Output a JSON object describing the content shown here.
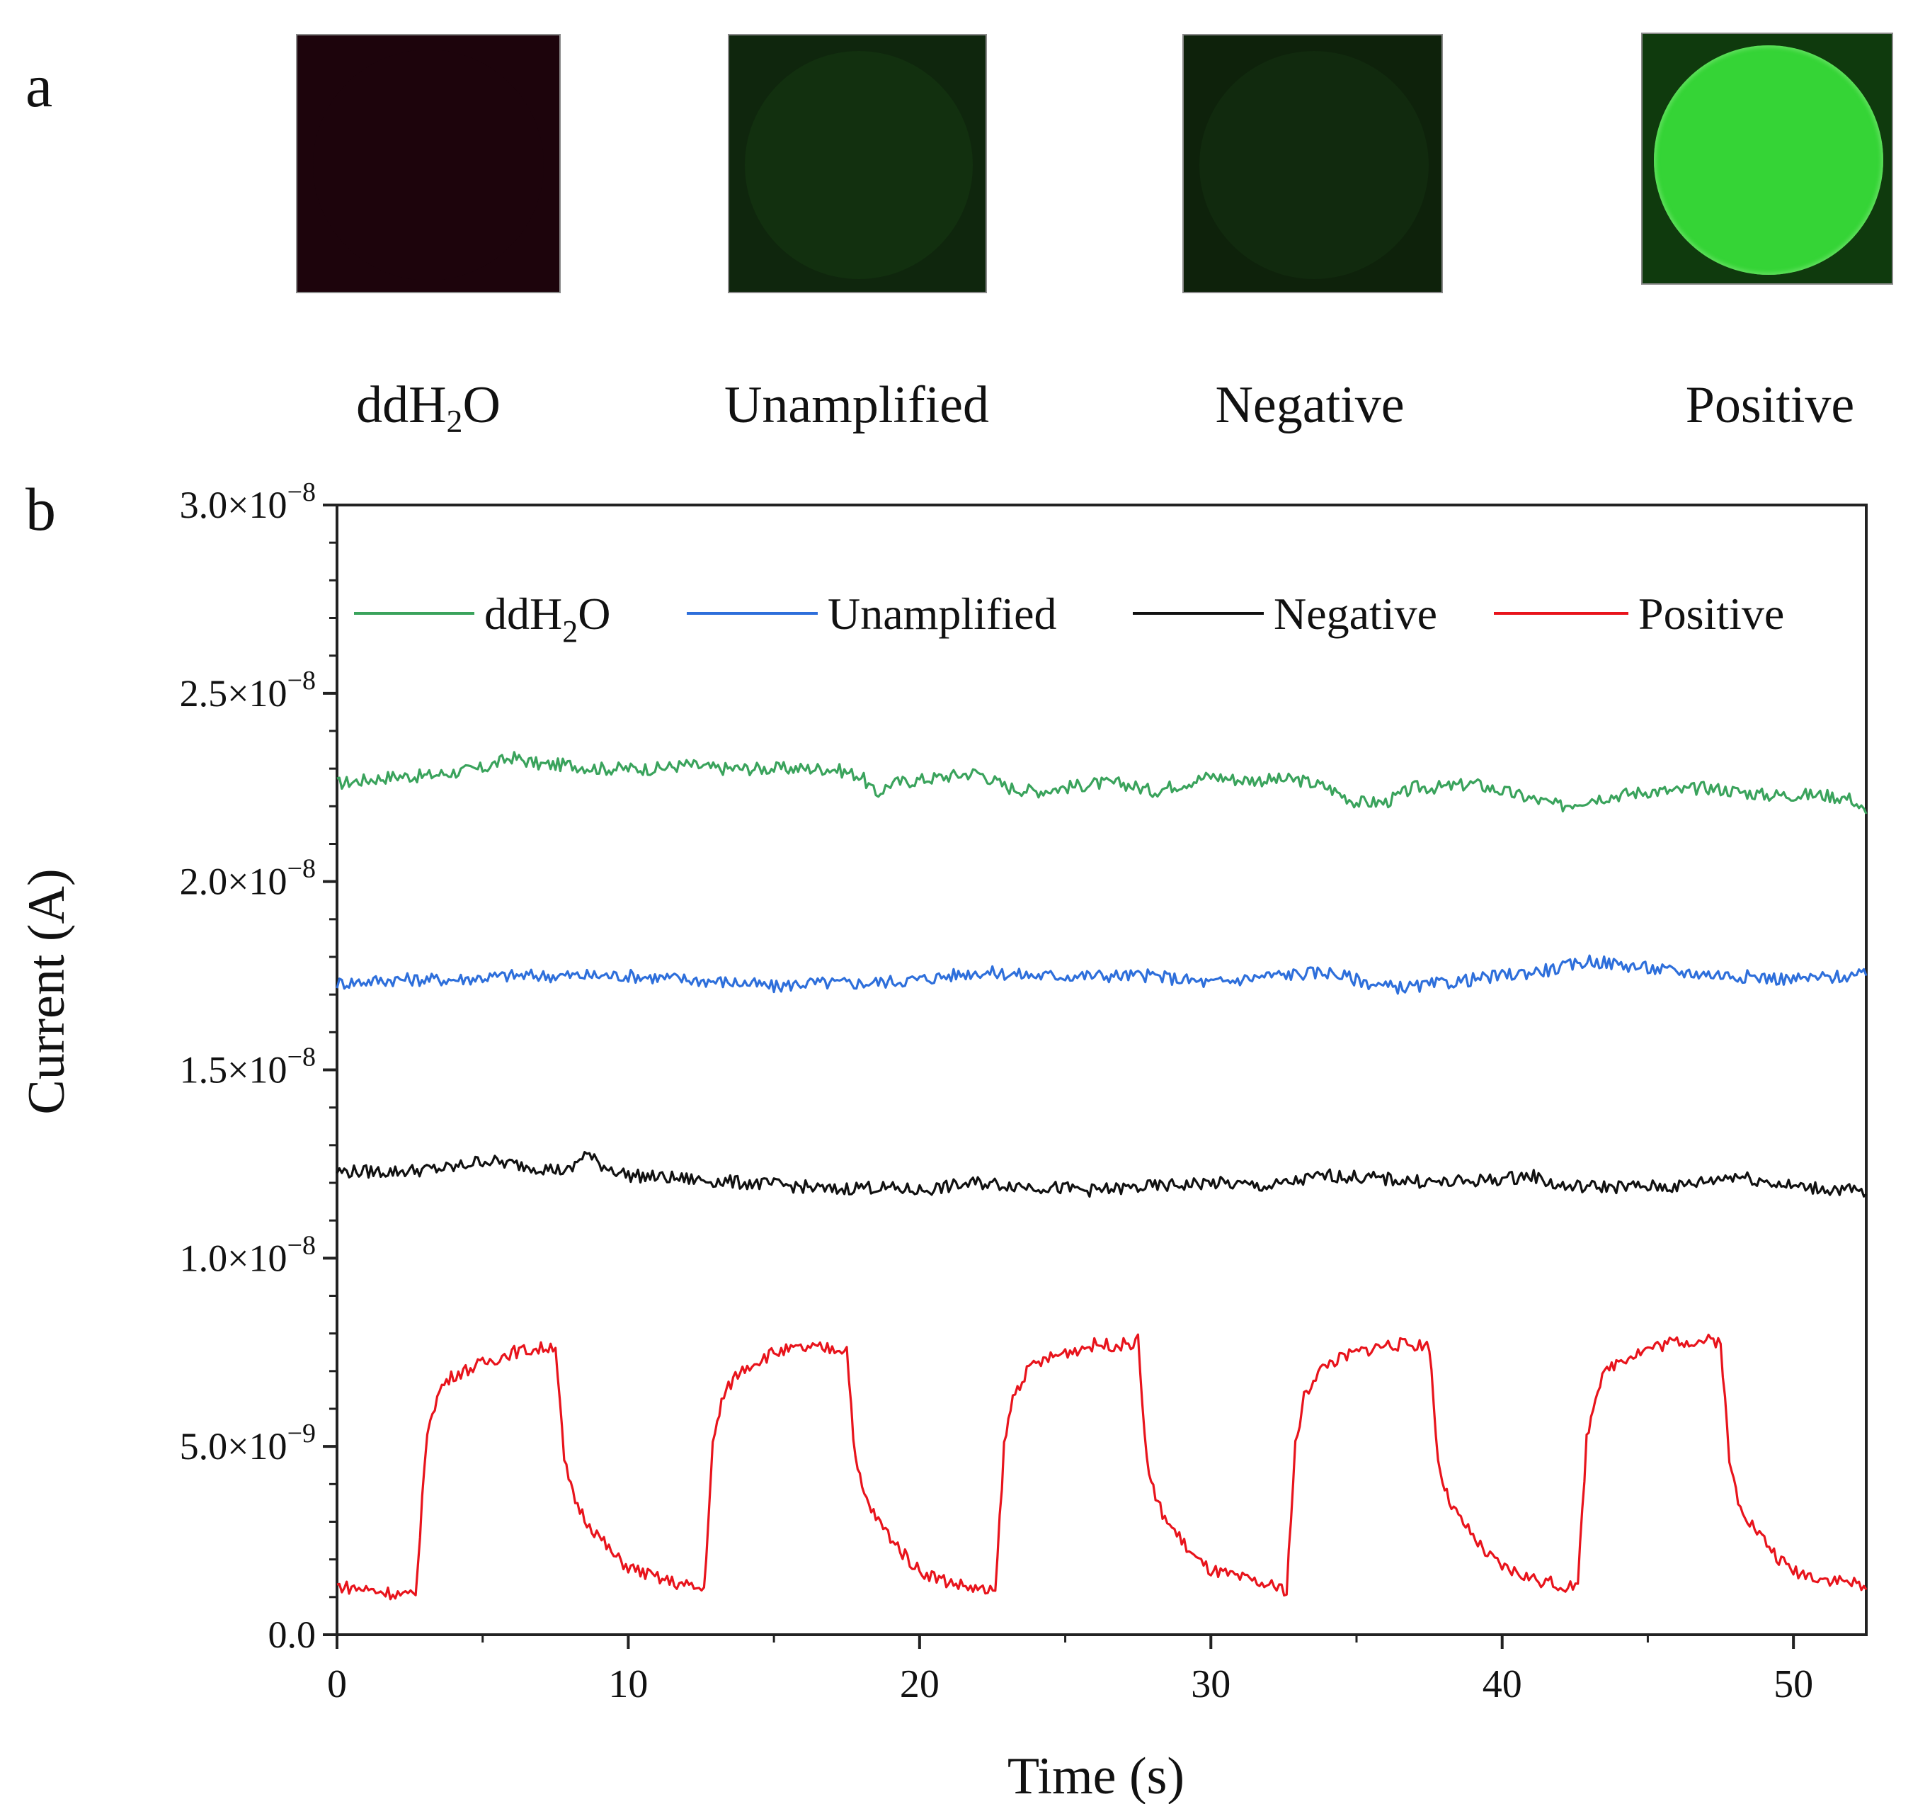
{
  "panel_a": {
    "letter": "a",
    "samples": [
      {
        "label_main": "ddH",
        "label_sub": "2",
        "label_tail": "O",
        "base_color": "#1d040c",
        "disc_color": "#1d040c"
      },
      {
        "label_main": "Unamplified",
        "label_sub": "",
        "label_tail": "",
        "base_color": "#0f260d",
        "disc_color": "#12300f"
      },
      {
        "label_main": "Negative",
        "label_sub": "",
        "label_tail": "",
        "base_color": "#0e220b",
        "disc_color": "#112a0e"
      },
      {
        "label_main": "Positive",
        "label_sub": "",
        "label_tail": "",
        "base_color": "#0f3a0d",
        "disc_color": "#35d436"
      }
    ]
  },
  "panel_b": {
    "letter": "b"
  },
  "chart_data": {
    "type": "line",
    "xlabel": "Time (s)",
    "ylabel": "Current (A)",
    "xlim": [
      0,
      52.5
    ],
    "ylim": [
      0,
      3e-08
    ],
    "x_ticks": [
      0,
      10,
      20,
      30,
      40,
      50
    ],
    "x_tick_labels": [
      "0",
      "10",
      "20",
      "30",
      "40",
      "50"
    ],
    "y_ticks": [
      0,
      5e-09,
      1e-08,
      1.5e-08,
      2e-08,
      2.5e-08,
      3e-08
    ],
    "y_tick_labels": [
      {
        "mantissa": "0.0",
        "exponent": ""
      },
      {
        "mantissa": "5.0×10",
        "exponent": "−9"
      },
      {
        "mantissa": "1.0×10",
        "exponent": "−8"
      },
      {
        "mantissa": "1.5×10",
        "exponent": "−8"
      },
      {
        "mantissa": "2.0×10",
        "exponent": "−8"
      },
      {
        "mantissa": "2.5×10",
        "exponent": "−8"
      },
      {
        "mantissa": "3.0×10",
        "exponent": "−8"
      }
    ],
    "legend_position": "top",
    "series": [
      {
        "name": "ddH",
        "name_sub": "2",
        "name_tail": "O",
        "color": "#3aa35c",
        "x": [
          0,
          1,
          2,
          3,
          4,
          5,
          6,
          7,
          8,
          9,
          10,
          11,
          12,
          13,
          14,
          15,
          16,
          17,
          18,
          18.5,
          19,
          20,
          21,
          22,
          23,
          24,
          25,
          26,
          27,
          28,
          29,
          30,
          31,
          32,
          33,
          34,
          35,
          36,
          37,
          38,
          39,
          40,
          41,
          42,
          43,
          44,
          45,
          46,
          47,
          48,
          49,
          50,
          51,
          52,
          52.5
        ],
        "y": [
          2.26e-08,
          2.27e-08,
          2.28e-08,
          2.28e-08,
          2.29e-08,
          2.3e-08,
          2.33e-08,
          2.31e-08,
          2.31e-08,
          2.3e-08,
          2.3e-08,
          2.3e-08,
          2.31e-08,
          2.3e-08,
          2.3e-08,
          2.3e-08,
          2.3e-08,
          2.3e-08,
          2.28e-08,
          2.23e-08,
          2.26e-08,
          2.27e-08,
          2.28e-08,
          2.29e-08,
          2.25e-08,
          2.24e-08,
          2.25e-08,
          2.26e-08,
          2.26e-08,
          2.24e-08,
          2.26e-08,
          2.28e-08,
          2.27e-08,
          2.27e-08,
          2.27e-08,
          2.25e-08,
          2.21e-08,
          2.21e-08,
          2.25e-08,
          2.25e-08,
          2.26e-08,
          2.24e-08,
          2.22e-08,
          2.2e-08,
          2.22e-08,
          2.23e-08,
          2.24e-08,
          2.24e-08,
          2.25e-08,
          2.24e-08,
          2.23e-08,
          2.23e-08,
          2.23e-08,
          2.22e-08,
          2.18e-08
        ]
      },
      {
        "name": "Unamplified",
        "name_sub": "",
        "name_tail": "",
        "color": "#2e6fdb",
        "x": [
          0,
          2,
          4,
          6,
          8,
          10,
          12,
          14,
          15,
          16,
          18,
          20,
          22,
          24,
          26,
          28,
          30,
          32,
          34,
          36,
          37,
          38,
          40,
          42,
          43,
          44,
          46,
          48,
          50,
          52,
          52.5
        ],
        "y": [
          1.73e-08,
          1.74e-08,
          1.74e-08,
          1.75e-08,
          1.75e-08,
          1.75e-08,
          1.74e-08,
          1.73e-08,
          1.72e-08,
          1.73e-08,
          1.73e-08,
          1.74e-08,
          1.76e-08,
          1.75e-08,
          1.75e-08,
          1.75e-08,
          1.73e-08,
          1.75e-08,
          1.76e-08,
          1.72e-08,
          1.72e-08,
          1.73e-08,
          1.75e-08,
          1.77e-08,
          1.79e-08,
          1.78e-08,
          1.76e-08,
          1.75e-08,
          1.74e-08,
          1.75e-08,
          1.75e-08
        ]
      },
      {
        "name": "Negative",
        "name_sub": "",
        "name_tail": "",
        "color": "#111111",
        "x": [
          0,
          2,
          4,
          5,
          6,
          7,
          8,
          8.5,
          9,
          10,
          12,
          14,
          16,
          17,
          18,
          20,
          22,
          24,
          26,
          28,
          30,
          32,
          34,
          36,
          38,
          40,
          41,
          42,
          44,
          46,
          48,
          50,
          52,
          52.5
        ],
        "y": [
          1.23e-08,
          1.23e-08,
          1.24e-08,
          1.26e-08,
          1.25e-08,
          1.24e-08,
          1.23e-08,
          1.28e-08,
          1.25e-08,
          1.22e-08,
          1.21e-08,
          1.2e-08,
          1.19e-08,
          1.18e-08,
          1.19e-08,
          1.18e-08,
          1.2e-08,
          1.19e-08,
          1.18e-08,
          1.19e-08,
          1.2e-08,
          1.19e-08,
          1.22e-08,
          1.21e-08,
          1.2e-08,
          1.21e-08,
          1.22e-08,
          1.19e-08,
          1.19e-08,
          1.19e-08,
          1.22e-08,
          1.19e-08,
          1.18e-08,
          1.17e-08
        ]
      },
      {
        "name": "Positive",
        "name_sub": "",
        "name_tail": "",
        "color": "#e8141c",
        "x": [
          0,
          1,
          2,
          2.7,
          3.0,
          3.2,
          3.6,
          4,
          5,
          6,
          7,
          7.5,
          7.8,
          8.1,
          8.5,
          9,
          9.5,
          10,
          11,
          12,
          12.6,
          12.9,
          13.2,
          13.6,
          14,
          15,
          16,
          17,
          17.5,
          17.8,
          18.1,
          18.5,
          19,
          19.5,
          20,
          21,
          22,
          22.6,
          22.9,
          23.2,
          23.6,
          24,
          25,
          26,
          27,
          27.5,
          27.8,
          28.1,
          28.5,
          29,
          29.5,
          30,
          31,
          32,
          32.6,
          32.9,
          33.2,
          33.6,
          34,
          35,
          36,
          37,
          37.5,
          37.8,
          38.1,
          38.5,
          39,
          39.5,
          40,
          41,
          42,
          42.6,
          42.9,
          43.2,
          43.6,
          44,
          45,
          46,
          47,
          47.5,
          47.8,
          48.1,
          48.5,
          49,
          49.5,
          50,
          51,
          52,
          52.5
        ],
        "y": [
          1.3e-09,
          1.2e-09,
          1.1e-09,
          1e-09,
          4.5e-09,
          5.8e-09,
          6.6e-09,
          6.9e-09,
          7.2e-09,
          7.5e-09,
          7.6e-09,
          7.7e-09,
          4.6e-09,
          3.7e-09,
          3.1e-09,
          2.6e-09,
          2.1e-09,
          1.8e-09,
          1.5e-09,
          1.3e-09,
          1.2e-09,
          5e-09,
          6.2e-09,
          6.8e-09,
          7.1e-09,
          7.5e-09,
          7.6e-09,
          7.6e-09,
          7.6e-09,
          4.6e-09,
          3.7e-09,
          3.1e-09,
          2.6e-09,
          2.1e-09,
          1.7e-09,
          1.4e-09,
          1.2e-09,
          1.1e-09,
          5e-09,
          6.3e-09,
          6.9e-09,
          7.2e-09,
          7.5e-09,
          7.7e-09,
          7.7e-09,
          7.8e-09,
          4.6e-09,
          3.6e-09,
          3e-09,
          2.5e-09,
          2e-09,
          1.7e-09,
          1.5e-09,
          1.3e-09,
          1.2e-09,
          5e-09,
          6.3e-09,
          6.9e-09,
          7.2e-09,
          7.5e-09,
          7.7e-09,
          7.7e-09,
          7.7e-09,
          4.6e-09,
          3.7e-09,
          3.1e-09,
          2.6e-09,
          2.1e-09,
          1.8e-09,
          1.5e-09,
          1.3e-09,
          1.3e-09,
          5.2e-09,
          6.4e-09,
          7e-09,
          7.3e-09,
          7.6e-09,
          7.8e-09,
          7.8e-09,
          7.8e-09,
          4.6e-09,
          3.6e-09,
          3e-09,
          2.5e-09,
          2e-09,
          1.7e-09,
          1.5e-09,
          1.4e-09,
          1.2e-09
        ]
      }
    ]
  }
}
